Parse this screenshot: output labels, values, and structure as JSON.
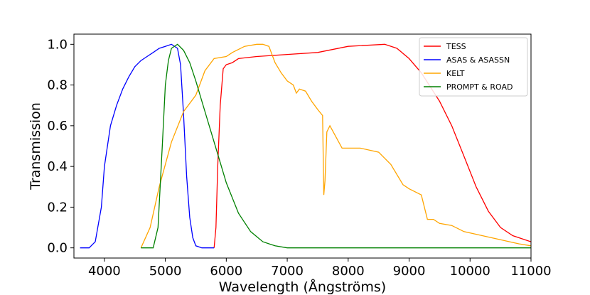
{
  "chart_data": {
    "type": "line",
    "title": "",
    "xlabel": "Wavelength (Ångströms)",
    "ylabel": "Transmission",
    "xlim": [
      3500,
      11000
    ],
    "ylim": [
      -0.05,
      1.05
    ],
    "xticks": [
      4000,
      5000,
      6000,
      7000,
      8000,
      9000,
      10000,
      11000
    ],
    "xtick_labels": [
      "4000",
      "5000",
      "6000",
      "7000",
      "8000",
      "9000",
      "10000",
      "11000"
    ],
    "yticks": [
      0.0,
      0.2,
      0.4,
      0.6,
      0.8,
      1.0
    ],
    "ytick_labels": [
      "0.0",
      "0.2",
      "0.4",
      "0.6",
      "0.8",
      "1.0"
    ],
    "grid": false,
    "legend_position": "top-right",
    "series": [
      {
        "name": "TESS",
        "color": "#ff0000",
        "x": [
          5800,
          5830,
          5860,
          5900,
          5950,
          6000,
          6100,
          6200,
          6500,
          7000,
          7500,
          8000,
          8600,
          8800,
          9000,
          9200,
          9500,
          9700,
          9900,
          10100,
          10300,
          10500,
          10700,
          11000
        ],
        "y": [
          0.0,
          0.1,
          0.4,
          0.7,
          0.88,
          0.9,
          0.91,
          0.93,
          0.94,
          0.95,
          0.96,
          0.99,
          1.0,
          0.98,
          0.93,
          0.86,
          0.72,
          0.6,
          0.45,
          0.3,
          0.18,
          0.1,
          0.06,
          0.03
        ]
      },
      {
        "name": "ASAS & ASASSN",
        "color": "#0000ff",
        "x": [
          3600,
          3750,
          3850,
          3950,
          4000,
          4100,
          4200,
          4300,
          4400,
          4500,
          4600,
          4700,
          4800,
          4900,
          5000,
          5100,
          5200,
          5250,
          5300,
          5350,
          5400,
          5450,
          5500,
          5600,
          5800
        ],
        "y": [
          0.0,
          0.0,
          0.03,
          0.2,
          0.4,
          0.6,
          0.7,
          0.78,
          0.84,
          0.89,
          0.92,
          0.94,
          0.96,
          0.98,
          0.99,
          1.0,
          0.98,
          0.9,
          0.65,
          0.35,
          0.15,
          0.05,
          0.01,
          0.0,
          0.0
        ]
      },
      {
        "name": "KELT",
        "color": "#ffa500",
        "x": [
          4600,
          4750,
          4900,
          5000,
          5100,
          5300,
          5500,
          5650,
          5800,
          6000,
          6100,
          6300,
          6500,
          6600,
          6700,
          6800,
          6900,
          7000,
          7100,
          7150,
          7200,
          7300,
          7400,
          7500,
          7580,
          7600,
          7620,
          7650,
          7700,
          7900,
          8200,
          8500,
          8700,
          8900,
          9000,
          9200,
          9300,
          9400,
          9500,
          9700,
          9900,
          10200,
          10500,
          10800,
          11000
        ],
        "y": [
          0.0,
          0.1,
          0.3,
          0.41,
          0.52,
          0.67,
          0.75,
          0.87,
          0.93,
          0.94,
          0.96,
          0.99,
          1.0,
          1.0,
          0.99,
          0.91,
          0.86,
          0.82,
          0.8,
          0.76,
          0.78,
          0.77,
          0.72,
          0.68,
          0.65,
          0.26,
          0.33,
          0.57,
          0.6,
          0.49,
          0.49,
          0.47,
          0.41,
          0.31,
          0.29,
          0.26,
          0.14,
          0.14,
          0.12,
          0.11,
          0.08,
          0.06,
          0.04,
          0.02,
          0.01
        ]
      },
      {
        "name": "PROMPT & ROAD",
        "color": "#008000",
        "x": [
          4600,
          4800,
          4880,
          4950,
          5000,
          5050,
          5100,
          5200,
          5300,
          5400,
          5500,
          5600,
          5800,
          6000,
          6200,
          6400,
          6600,
          6800,
          7000,
          7500,
          8000,
          9000,
          10000,
          11000
        ],
        "y": [
          0.0,
          0.0,
          0.1,
          0.5,
          0.8,
          0.92,
          0.98,
          1.0,
          0.97,
          0.91,
          0.82,
          0.72,
          0.52,
          0.32,
          0.17,
          0.08,
          0.03,
          0.01,
          0.0,
          0.0,
          0.0,
          0.0,
          0.0,
          0.0
        ]
      }
    ]
  }
}
